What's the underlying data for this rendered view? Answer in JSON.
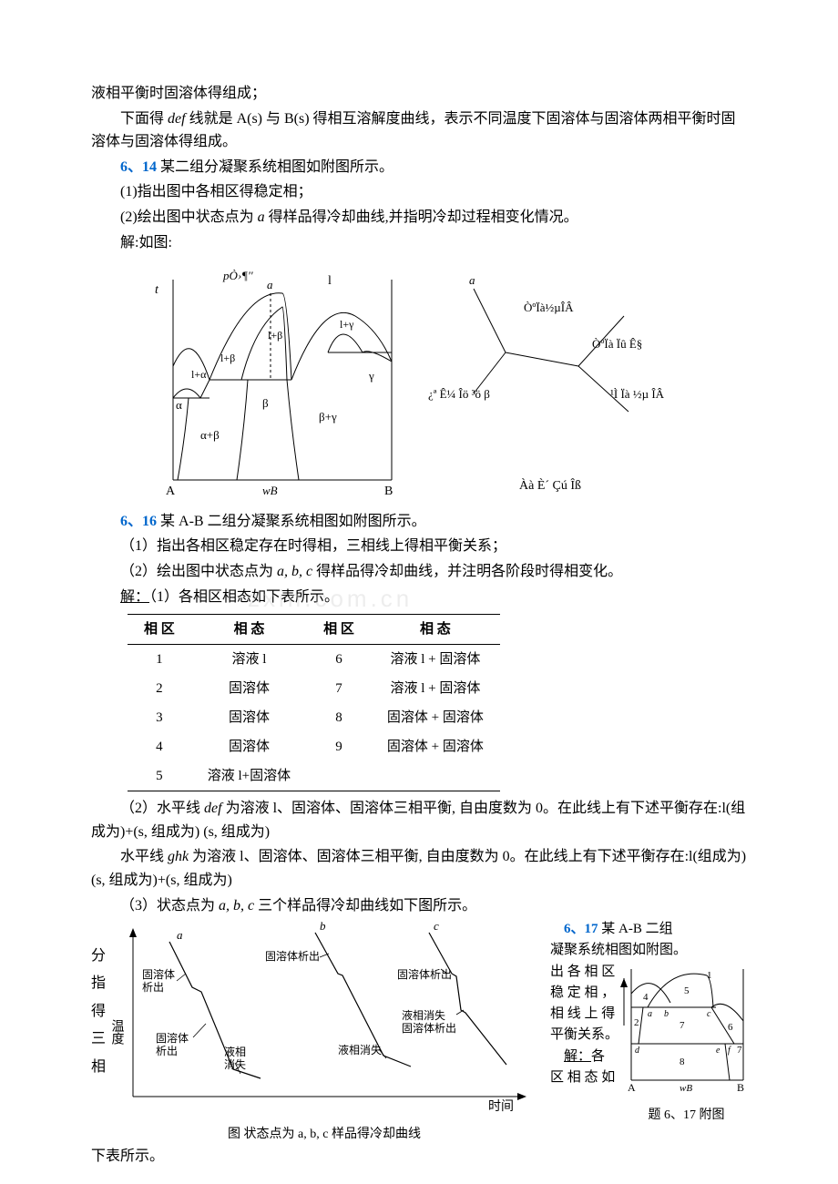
{
  "p1": "液相平衡时固溶体得组成；",
  "p2_pre": "下面得 ",
  "p2_def": "def",
  "p2_rest": " 线就是 A(s) 与 B(s) 得相互溶解度曲线，表示不同温度下固溶体与固溶体两相平衡时固溶体与固溶体得组成。",
  "q614_num": "6、14",
  "q614_txt": " 某二组分凝聚系统相图如附图所示。",
  "q614_1": "(1)指出图中各相区得稳定相；",
  "q614_2_pre": "(2)绘出图中状态点为 ",
  "q614_2_a": "a",
  "q614_2_post": " 得样品得冷却曲线,并指明冷却过程相变化情况。",
  "q614_sol": "解:如图:",
  "fig1": {
    "p_label": "pÒ›¶''",
    "t_label": "t",
    "a_label": "a",
    "axis_A": "A",
    "axis_B": "B",
    "axis_wB": "wB",
    "regions": {
      "l": "l",
      "alpha": "α",
      "beta": "β",
      "gamma": "γ",
      "l_alpha": "l+α",
      "l_beta1": "l+β",
      "l_beta2": "l+β",
      "l_gamma": "l+γ",
      "alpha_beta": "α+β",
      "beta_gamma": "β+γ"
    },
    "colors": {
      "line": "#000000",
      "dash": "#000000",
      "bg": "#ffffff"
    },
    "stroke_w": 1
  },
  "fig2": {
    "a": "a",
    "t1": "ÒºÏà½µÎÂ",
    "t2": "ÒºÏà Ïû Ê§",
    "t3": "¿ª Ê¼ Îö ³ö β",
    "t4": "¹Ì Ïà ½µ ÎÂ",
    "bottom": "Àà È´ Çú Îß"
  },
  "q616_num": "6、16",
  "q616_txt": " 某 A-B 二组分凝聚系统相图如附图所示。",
  "q616_1": "（1）指出各相区稳定存在时得相，三相线上得相平衡关系；",
  "q616_2_pre": "（2）绘出图中状态点为 ",
  "q616_2_abc": "a, b, c",
  "q616_2_post": " 得样品得冷却曲线，并注明各阶段时得相变化。",
  "q616_sol_pre": "解：",
  "q616_sol_txt": "（1）各相区相态如下表所示。",
  "table": {
    "headers": [
      "相 区",
      "相 态",
      "相 区",
      "相 态"
    ],
    "rows": [
      [
        "1",
        "溶液 l",
        "6",
        "溶液 l + 固溶体"
      ],
      [
        "2",
        "固溶体",
        "7",
        "溶液 l + 固溶体"
      ],
      [
        "3",
        "固溶体",
        "8",
        "固溶体 + 固溶体"
      ],
      [
        "4",
        "固溶体",
        "9",
        "固溶体 + 固溶体"
      ],
      [
        "5",
        "溶液 l+固溶体",
        "",
        ""
      ]
    ]
  },
  "p_def_pre": "（2）水平线 ",
  "p_def": "def",
  "p_def_post": " 为溶液 l、固溶体、固溶体三相平衡, 自由度数为 0。在此线上有下述平衡存在:l(组成为)+(s, 组成为) (s, 组成为)",
  "p_ghk_pre": "水平线 ",
  "p_ghk": "ghk",
  "p_ghk_post": " 为溶液 l、固溶体、固溶体三相平衡, 自由度数为 0。在此线上有下述平衡存在:l(组成为) (s, 组成为)+(s, 组成为)",
  "p_3_pre": "（3）状态点为 ",
  "p_3_abc": "a, b, c",
  "p_3_post": " 三个样品得冷却曲线如下图所示。",
  "fig3": {
    "ylabel": "温度",
    "xlabel": "时间",
    "caption": "图   状态点为 a, b, c 样品得冷却曲线",
    "labels": {
      "a": "a",
      "b": "b",
      "c": "c",
      "a1": "固溶体",
      "a1b": "析出",
      "a2": "固溶体",
      "a2b": "析出",
      "a3": "液相",
      "a3b": "消失",
      "b1": "固溶体析出",
      "b2": "液相消失",
      "c1": "固溶体析出",
      "c2": "液相消失",
      "c2b": "固溶体析出"
    },
    "stroke_w": 1.2,
    "color": "#000000"
  },
  "q617_num": "6、17",
  "q617_txt": " 某 A-B 二组",
  "q617_l2": "凝聚系统相图如附图。",
  "q617_l3a": "出 各 相 区",
  "q617_l3b": "稳 定 相 ，",
  "q617_l4a": "相 线 上 得",
  "q617_l4b": "平衡关系。",
  "q617_sol_pre": "解：",
  "q617_sol_txt": "各",
  "q617_l5": "区 相 态 如",
  "left_col": [
    "分",
    "指",
    "得",
    "三",
    "",
    "相"
  ],
  "q617_last": "下表所示。",
  "fig4": {
    "caption": "题 6、17  附图",
    "A": "A",
    "B": "B",
    "wB": "wB",
    "nums": [
      "1",
      "2",
      "3",
      "4",
      "5",
      "6",
      "7",
      "8"
    ],
    "letters": [
      "a",
      "b",
      "c",
      "d",
      "e",
      "f"
    ]
  },
  "watermark": "zxin.com.cn"
}
